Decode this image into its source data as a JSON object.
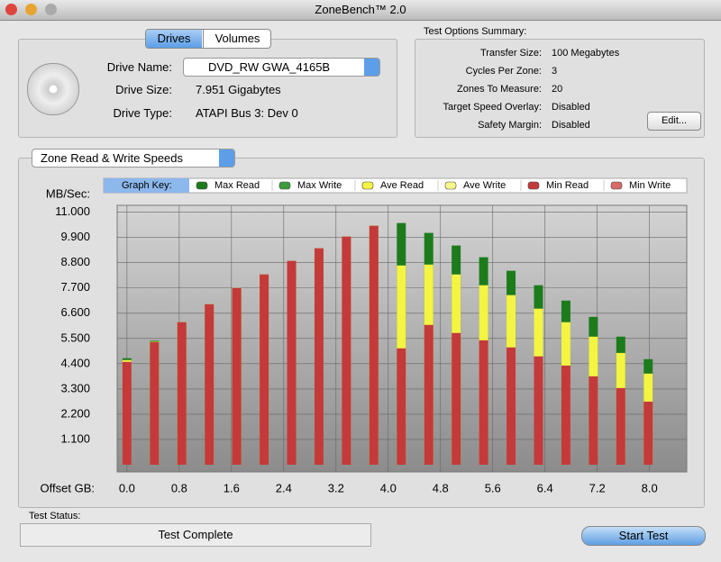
{
  "window": {
    "title": "ZoneBench™ 2.0"
  },
  "drives": {
    "tabs": [
      "Drives",
      "Volumes"
    ],
    "fields": [
      {
        "label": "Drive Name:",
        "value": "DVD_RW GWA_4165B"
      },
      {
        "label": "Drive Size:",
        "value": "7.951 Gigabytes"
      },
      {
        "label": "Drive Type:",
        "value": "ATAPI Bus 3: Dev 0"
      }
    ]
  },
  "options": {
    "title": "Test Options Summary:",
    "rows": [
      {
        "label": "Transfer Size:",
        "value": "100 Megabytes"
      },
      {
        "label": "Cycles Per Zone:",
        "value": "3"
      },
      {
        "label": "Zones To Measure:",
        "value": "20"
      },
      {
        "label": "Target Speed Overlay:",
        "value": "Disabled"
      },
      {
        "label": "Safety Margin:",
        "value": "Disabled"
      }
    ],
    "edit_button": "Edit..."
  },
  "graph_panel": {
    "selector": "Zone Read & Write Speeds"
  },
  "chart_data": {
    "type": "bar",
    "y_label": "MB/Sec:",
    "x_label": "Offset GB:",
    "legend_title": "Graph Key:",
    "x": [
      0,
      0.42,
      0.84,
      1.26,
      1.68,
      2.1,
      2.52,
      2.94,
      3.36,
      3.78,
      4.2,
      4.62,
      5.04,
      5.46,
      5.88,
      6.3,
      6.72,
      7.14,
      7.56,
      7.98
    ],
    "series": [
      {
        "name": "Max Read",
        "color": "#1c7c1c",
        "values": [
          4.64,
          5.4,
          6.21,
          6.99,
          7.7,
          8.29,
          8.88,
          9.43,
          9.94,
          10.41,
          10.53,
          10.1,
          9.55,
          9.04,
          8.45,
          7.82,
          7.15,
          6.44,
          5.58,
          4.6
        ]
      },
      {
        "name": "Max Write",
        "color": "#3c9c3c",
        "values": [
          null,
          null,
          null,
          null,
          null,
          null,
          null,
          null,
          null,
          null,
          null,
          null,
          null,
          null,
          null,
          null,
          null,
          null,
          null,
          null
        ]
      },
      {
        "name": "Ave Read",
        "color": "#f4f442",
        "values": [
          4.56,
          5.36,
          6.21,
          6.99,
          7.7,
          8.29,
          8.88,
          9.43,
          9.94,
          10.41,
          8.68,
          8.72,
          8.29,
          7.82,
          7.39,
          6.8,
          6.21,
          5.58,
          4.87,
          3.97
        ]
      },
      {
        "name": "Ave Write",
        "color": "#f8f88a",
        "values": [
          null,
          null,
          null,
          null,
          null,
          null,
          null,
          null,
          null,
          null,
          null,
          null,
          null,
          null,
          null,
          null,
          null,
          null,
          null,
          null
        ]
      },
      {
        "name": "Min Read",
        "color": "#c43a3a",
        "values": [
          4.48,
          5.34,
          6.21,
          6.99,
          7.7,
          8.29,
          8.88,
          9.43,
          9.94,
          10.41,
          5.07,
          6.09,
          5.74,
          5.42,
          5.11,
          4.72,
          4.32,
          3.85,
          3.34,
          2.75
        ]
      },
      {
        "name": "Min Write",
        "color": "#d86a6a",
        "values": [
          null,
          null,
          null,
          null,
          null,
          null,
          null,
          null,
          null,
          null,
          null,
          null,
          null,
          null,
          null,
          null,
          null,
          null,
          null,
          null
        ]
      }
    ],
    "xlim": [
      -0.15,
      8.57
    ],
    "ylim": [
      0,
      11.3
    ],
    "xticks": [
      {
        "value": 0,
        "label": "0.0"
      },
      0.8,
      1.6,
      2.4,
      3.2,
      {
        "value": 4,
        "label": "4.0"
      },
      4.8,
      5.6,
      6.4,
      7.2,
      {
        "value": 8,
        "label": "8.0"
      }
    ],
    "yticks": [
      {
        "value": 11,
        "label": "11.000"
      },
      {
        "value": 9.9,
        "label": "9.900"
      },
      {
        "value": 8.8,
        "label": "8.800"
      },
      {
        "value": 7.7,
        "label": "7.700"
      },
      {
        "value": 6.6,
        "label": "6.600"
      },
      {
        "value": 5.5,
        "label": "5.500"
      },
      {
        "value": 4.4,
        "label": "4.400"
      },
      {
        "value": 3.3,
        "label": "3.300"
      },
      {
        "value": 2.2,
        "label": "2.200"
      },
      {
        "value": 1.1,
        "label": "1.100"
      }
    ],
    "grid": true
  },
  "status": {
    "label": "Test Status:",
    "text": "Test Complete"
  },
  "start_button": "Start Test"
}
